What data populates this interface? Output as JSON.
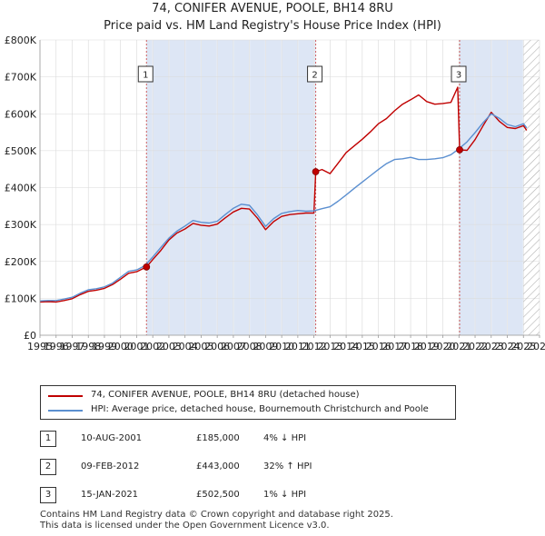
{
  "chart_data": {
    "type": "line",
    "title": "74, CONIFER AVENUE, POOLE, BH14 8RU",
    "subtitle": "Price paid vs. HM Land Registry's House Price Index (HPI)",
    "xlim": [
      1995,
      2026
    ],
    "ylim": [
      0,
      800000
    ],
    "x_ticks": [
      "1995",
      "1996",
      "1997",
      "1998",
      "1999",
      "2000",
      "2001",
      "2002",
      "2003",
      "2004",
      "2005",
      "2006",
      "2007",
      "2008",
      "2009",
      "2010",
      "2011",
      "2012",
      "2013",
      "2014",
      "2015",
      "2016",
      "2017",
      "2018",
      "2019",
      "2020",
      "2021",
      "2022",
      "2023",
      "2024",
      "2025",
      "2026"
    ],
    "y_ticks": [
      {
        "value": 0,
        "label": "£0"
      },
      {
        "value": 100000,
        "label": "£100K"
      },
      {
        "value": 200000,
        "label": "£200K"
      },
      {
        "value": 300000,
        "label": "£300K"
      },
      {
        "value": 400000,
        "label": "£400K"
      },
      {
        "value": 500000,
        "label": "£500K"
      },
      {
        "value": 600000,
        "label": "£600K"
      },
      {
        "value": 700000,
        "label": "£700K"
      },
      {
        "value": 800000,
        "label": "£800K"
      }
    ],
    "grid": true,
    "forecast_start": 2025.0,
    "shaded_ranges": [
      [
        2001.61,
        2012.11
      ],
      [
        2021.04,
        2025.0
      ]
    ],
    "series": [
      {
        "name": "74, CONIFER AVENUE, POOLE, BH14 8RU (detached house)",
        "color": "#c00000",
        "x": [
          1995.0,
          1995.5,
          1996.0,
          1996.5,
          1997.0,
          1997.5,
          1998.0,
          1998.5,
          1999.0,
          1999.5,
          2000.0,
          2000.5,
          2001.0,
          2001.61,
          2002.0,
          2002.5,
          2003.0,
          2003.5,
          2004.0,
          2004.5,
          2005.0,
          2005.5,
          2006.0,
          2006.5,
          2007.0,
          2007.5,
          2008.0,
          2008.5,
          2009.0,
          2009.5,
          2010.0,
          2010.5,
          2011.0,
          2011.5,
          2012.0,
          2012.11,
          2012.5,
          2013.0,
          2013.5,
          2014.0,
          2014.5,
          2015.0,
          2015.5,
          2016.0,
          2016.5,
          2017.0,
          2017.5,
          2018.0,
          2018.5,
          2019.0,
          2019.5,
          2020.0,
          2020.5,
          2020.92,
          2021.04,
          2021.5,
          2022.0,
          2022.5,
          2023.0,
          2023.5,
          2024.0,
          2024.5,
          2025.0,
          2025.2
        ],
        "values": [
          90000,
          91000,
          90000,
          94000,
          99000,
          110000,
          119000,
          122000,
          127000,
          137000,
          152000,
          168000,
          172000,
          185000,
          205000,
          230000,
          258000,
          277000,
          288000,
          303000,
          298000,
          296000,
          301000,
          318000,
          334000,
          344000,
          342000,
          317000,
          286000,
          308000,
          322000,
          327000,
          329000,
          331000,
          331000,
          443000,
          449000,
          438000,
          466000,
          495000,
          513000,
          531000,
          551000,
          573000,
          587000,
          608000,
          626000,
          638000,
          651000,
          633000,
          626000,
          628000,
          631000,
          672000,
          502500,
          501000,
          530000,
          568000,
          604000,
          580000,
          563000,
          560000,
          568000,
          555000
        ]
      },
      {
        "name": "HPI: Average price, detached house, Bournemouth Christchurch and Poole",
        "color": "#5b8fd0",
        "x": [
          1995.0,
          1995.5,
          1996.0,
          1996.5,
          1997.0,
          1997.5,
          1998.0,
          1998.5,
          1999.0,
          1999.5,
          2000.0,
          2000.5,
          2001.0,
          2001.5,
          2002.0,
          2002.5,
          2003.0,
          2003.5,
          2004.0,
          2004.5,
          2005.0,
          2005.5,
          2006.0,
          2006.5,
          2007.0,
          2007.5,
          2008.0,
          2008.5,
          2009.0,
          2009.5,
          2010.0,
          2010.5,
          2011.0,
          2011.5,
          2012.0,
          2012.5,
          2013.0,
          2013.5,
          2014.0,
          2014.5,
          2015.0,
          2015.5,
          2016.0,
          2016.5,
          2017.0,
          2017.5,
          2018.0,
          2018.5,
          2019.0,
          2019.5,
          2020.0,
          2020.5,
          2021.0,
          2021.5,
          2022.0,
          2022.5,
          2023.0,
          2023.5,
          2024.0,
          2024.5,
          2025.0,
          2025.2
        ],
        "values": [
          93000,
          94000,
          94000,
          98000,
          103000,
          114000,
          123000,
          126000,
          131000,
          141000,
          157000,
          173000,
          177000,
          188000,
          212000,
          238000,
          263000,
          282000,
          296000,
          311000,
          306000,
          304000,
          309000,
          327000,
          344000,
          355000,
          352000,
          326000,
          295000,
          316000,
          330000,
          335000,
          338000,
          336000,
          337000,
          343000,
          348000,
          363000,
          380000,
          398000,
          415000,
          432000,
          449000,
          465000,
          476000,
          478000,
          482000,
          476000,
          476000,
          478000,
          481000,
          489000,
          505000,
          524000,
          549000,
          576000,
          600000,
          588000,
          571000,
          565000,
          573000,
          562000
        ]
      }
    ],
    "sales": [
      {
        "id": "1",
        "x": 2001.61,
        "value": 185000
      },
      {
        "id": "2",
        "x": 2012.11,
        "value": 443000
      },
      {
        "id": "3",
        "x": 2021.04,
        "value": 502500
      }
    ]
  },
  "legend": {
    "property": "74, CONIFER AVENUE, POOLE, BH14 8RU (detached house)",
    "hpi": "HPI: Average price, detached house, Bournemouth Christchurch and Poole"
  },
  "transactions": [
    {
      "num": "1",
      "date": "10-AUG-2001",
      "price": "£185,000",
      "pct": "4% ↓ HPI"
    },
    {
      "num": "2",
      "date": "09-FEB-2012",
      "price": "£443,000",
      "pct": "32% ↑ HPI"
    },
    {
      "num": "3",
      "date": "15-JAN-2021",
      "price": "£502,500",
      "pct": "1% ↓ HPI"
    }
  ],
  "footer": {
    "line1": "Contains HM Land Registry data © Crown copyright and database right 2025.",
    "line2": "This data is licensed under the Open Government Licence v3.0."
  },
  "colors": {
    "property": "#c00000",
    "hpi": "#5b8fd0",
    "shade": "#dde6f5"
  }
}
